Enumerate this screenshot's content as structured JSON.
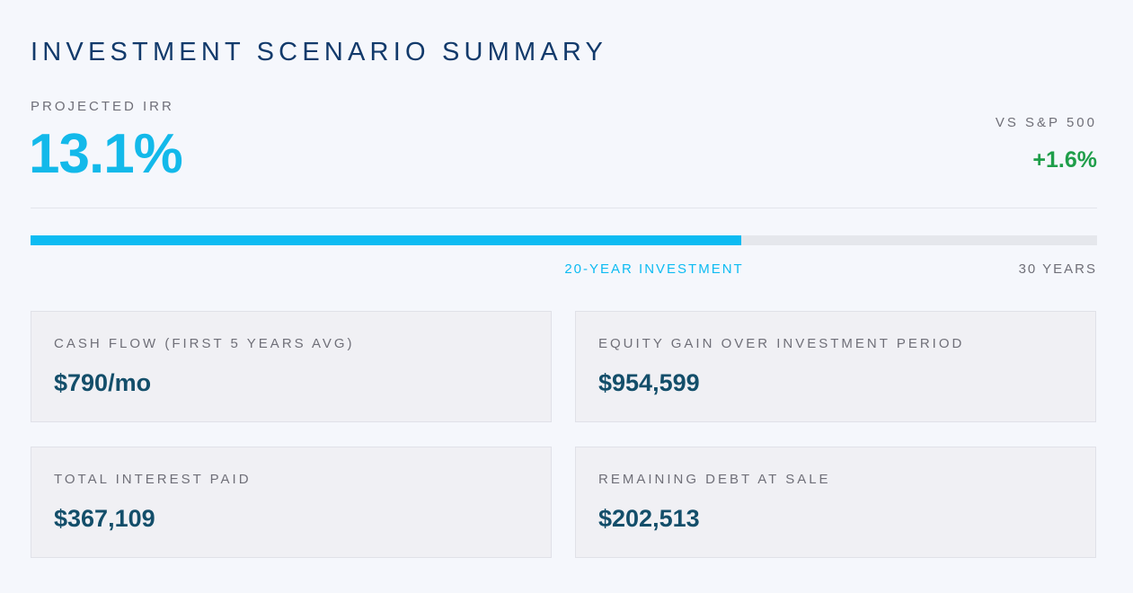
{
  "header": {
    "title": "INVESTMENT SCENARIO SUMMARY"
  },
  "irr": {
    "label": "PROJECTED IRR",
    "value": "13.1%"
  },
  "comparison": {
    "label": "VS S&P 500",
    "value": "+1.6%"
  },
  "progress": {
    "value": 20,
    "max": 30,
    "label": "20-YEAR INVESTMENT",
    "max_label": "30 YEARS"
  },
  "cards": [
    {
      "label": "CASH FLOW (FIRST 5 YEARS AVG)",
      "value": "$790/mo"
    },
    {
      "label": "EQUITY GAIN OVER INVESTMENT PERIOD",
      "value": "$954,599"
    },
    {
      "label": "TOTAL INTEREST PAID",
      "value": "$367,109"
    },
    {
      "label": "REMAINING DEBT AT SALE",
      "value": "$202,513"
    }
  ]
}
